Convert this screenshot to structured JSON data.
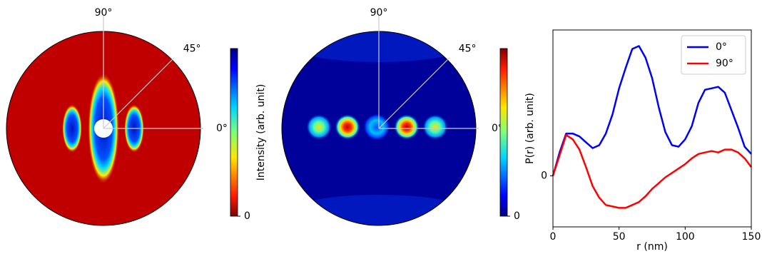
{
  "chart_data": [
    {
      "type": "polar-image",
      "angle_labels": [
        "90°",
        "45°",
        "0°"
      ],
      "colorbar_label": "Intensity (arb. unit)",
      "colorbar_ticks": [
        0
      ],
      "colormap": "jet_r",
      "background": "#c00000"
    },
    {
      "type": "polar-image",
      "angle_labels": [
        "90°",
        "45°",
        "0°"
      ],
      "colorbar_ticks": [
        0
      ],
      "colormap": "jet",
      "background": "#00009a"
    },
    {
      "type": "line",
      "xlabel": "r (nm)",
      "ylabel": "P(r) (arb. unit)",
      "x": [
        0,
        5,
        10,
        15,
        20,
        25,
        30,
        35,
        40,
        45,
        50,
        55,
        60,
        65,
        70,
        75,
        80,
        85,
        90,
        95,
        100,
        105,
        110,
        115,
        120,
        125,
        130,
        135,
        140,
        145,
        150
      ],
      "series": [
        {
          "name": "0°",
          "color": "#0000ff",
          "values": [
            0,
            0.16,
            0.29,
            0.29,
            0.27,
            0.23,
            0.19,
            0.21,
            0.29,
            0.42,
            0.6,
            0.74,
            0.87,
            0.89,
            0.81,
            0.67,
            0.47,
            0.3,
            0.21,
            0.2,
            0.25,
            0.34,
            0.5,
            0.59,
            0.6,
            0.61,
            0.57,
            0.45,
            0.33,
            0.2,
            0.15
          ]
        },
        {
          "name": "90°",
          "color": "#ff0000",
          "values": [
            0,
            0.14,
            0.28,
            0.25,
            0.18,
            0.06,
            -0.07,
            -0.15,
            -0.2,
            -0.21,
            -0.22,
            -0.22,
            -0.2,
            -0.18,
            -0.14,
            -0.09,
            -0.05,
            -0.01,
            0.02,
            0.05,
            0.08,
            0.12,
            0.15,
            0.16,
            0.17,
            0.16,
            0.18,
            0.18,
            0.16,
            0.12,
            0.06
          ]
        }
      ],
      "xlim": [
        0,
        150
      ],
      "xticks": [
        0,
        50,
        100,
        150
      ],
      "ylim": [
        -0.35,
        1.0
      ],
      "yticks": [
        0
      ],
      "legend": "upper right"
    }
  ]
}
